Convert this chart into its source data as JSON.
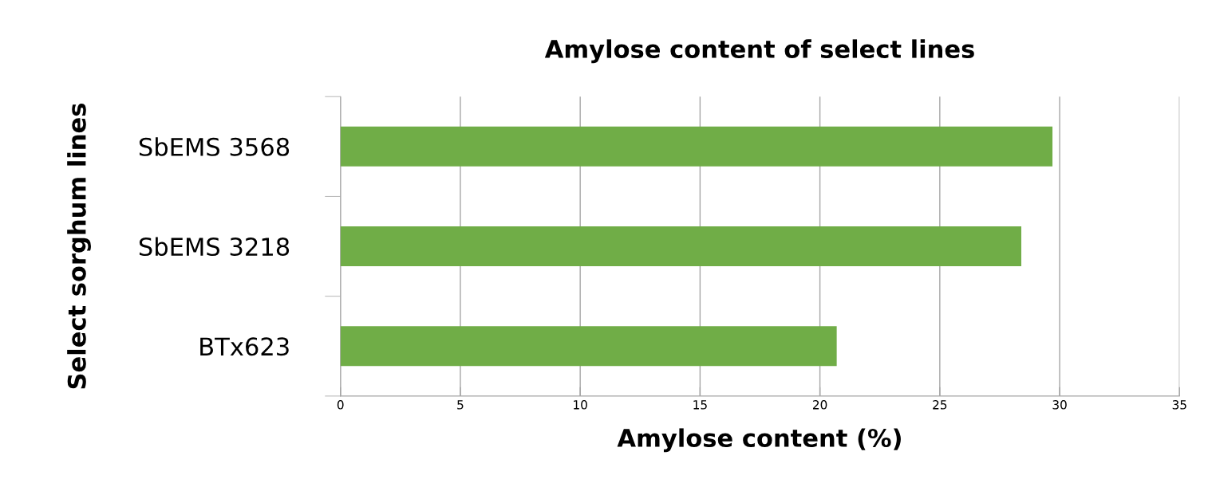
{
  "chart_data": {
    "type": "bar",
    "orientation": "horizontal",
    "title": "Amylose content of select lines",
    "xlabel": "Amylose content (%)",
    "ylabel": "Select sorghum lines",
    "categories": [
      "SbEMS 3568",
      "SbEMS 3218",
      "BTx623"
    ],
    "values": [
      29.7,
      28.4,
      20.7
    ],
    "color": "#70ad47",
    "xlim": [
      0,
      35
    ],
    "xticks": [
      0,
      5,
      10,
      15,
      20,
      25,
      30,
      35
    ],
    "grid": "x",
    "legend": false
  }
}
